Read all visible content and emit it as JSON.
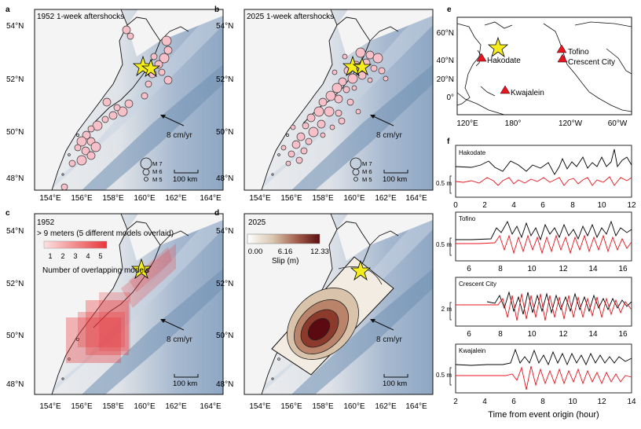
{
  "panels": {
    "a": {
      "letter": "a",
      "title": "1952 1-week aftershocks"
    },
    "b": {
      "letter": "b",
      "title": "2025 1-week aftershocks"
    },
    "c": {
      "letter": "c",
      "title": "1952",
      "subtitle": "> 9 meters (5 different models overlaid)",
      "legend_ticks": [
        "1",
        "2",
        "3",
        "4",
        "5"
      ],
      "legend_label": "Number of overlapping models"
    },
    "d": {
      "letter": "d",
      "title": "2025",
      "colorbar_ticks": [
        "0.00",
        "6.16",
        "12.33"
      ],
      "colorbar_label": "Slip (m)"
    },
    "e": {
      "letter": "e"
    },
    "f": {
      "letter": "f",
      "xlabel": "Time from event origin (hour)"
    }
  },
  "map_axes": {
    "lat_labels": [
      "54°N",
      "52°N",
      "50°N",
      "48°N"
    ],
    "lon_labels": [
      "154°E",
      "156°E",
      "158°E",
      "160°E",
      "162°E",
      "164°E"
    ]
  },
  "velocity_label": "8 cm/yr",
  "scalebar_label": "100 km",
  "magnitude_legend": [
    "M 7",
    "M 6",
    "M 5"
  ],
  "globe": {
    "lat_labels": [
      "60°N",
      "40°N",
      "20°N",
      "0°"
    ],
    "lon_labels": [
      "120°E",
      "180°",
      "120°W",
      "60°W"
    ],
    "stations": [
      "Hakodate",
      "Tofino",
      "Crescent City",
      "Kwajalein"
    ]
  },
  "tide": [
    {
      "name": "Hakodate",
      "scale": "0.5 m",
      "ticks": [
        "0",
        "2",
        "4",
        "6",
        "8",
        "10",
        "12"
      ]
    },
    {
      "name": "Tofino",
      "scale": "0.5 m",
      "ticks": [
        "6",
        "8",
        "10",
        "12",
        "14",
        "16"
      ]
    },
    {
      "name": "Crescent City",
      "scale": "2 m",
      "ticks": [
        "6",
        "8",
        "10",
        "12",
        "14",
        "16"
      ]
    },
    {
      "name": "Kwajalein",
      "scale": "0.5 m",
      "ticks": [
        "2",
        "4",
        "6",
        "8",
        "10",
        "12",
        "14"
      ]
    }
  ],
  "colors": {
    "observed": "#000000",
    "modeled": "#e8141e",
    "aftershock": "#f7c0c8",
    "epicenter": "#f4ec1c",
    "station": "#e8141e"
  }
}
